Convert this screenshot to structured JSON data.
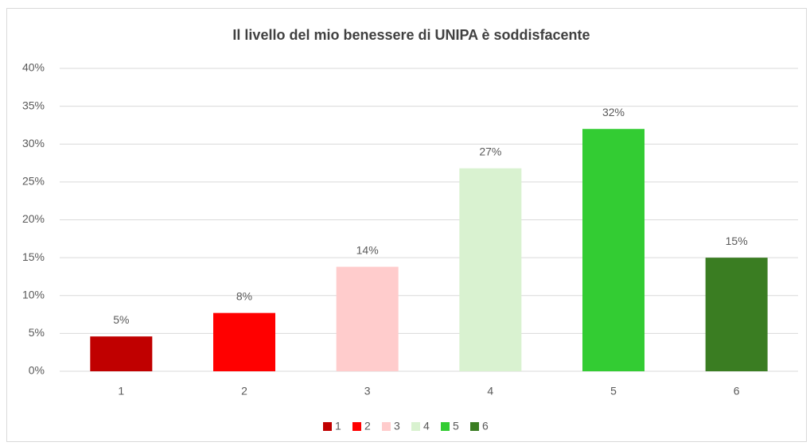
{
  "chart_data": {
    "type": "bar",
    "title": "Il livello  del mio benessere di UNIPA è soddisfacente",
    "categories": [
      "1",
      "2",
      "3",
      "4",
      "5",
      "6"
    ],
    "values": [
      4.6,
      7.7,
      13.8,
      26.8,
      32,
      15
    ],
    "value_labels": [
      "5%",
      "8%",
      "14%",
      "27%",
      "32%",
      "15%"
    ],
    "colors": [
      "#c00000",
      "#ff0000",
      "#ffcccc",
      "#d9f2d0",
      "#33cc33",
      "#3a7d22"
    ],
    "ylim": [
      0,
      40
    ],
    "yticks": [
      {
        "value": 0,
        "label": "0%"
      },
      {
        "value": 5,
        "label": "5%"
      },
      {
        "value": 10,
        "label": "10%"
      },
      {
        "value": 15,
        "label": "15%"
      },
      {
        "value": 20,
        "label": "20%"
      },
      {
        "value": 25,
        "label": "25%"
      },
      {
        "value": 30,
        "label": "30%"
      },
      {
        "value": 35,
        "label": "35%"
      },
      {
        "value": 40,
        "label": "40%"
      }
    ],
    "grid": true,
    "legend": "bottom"
  }
}
